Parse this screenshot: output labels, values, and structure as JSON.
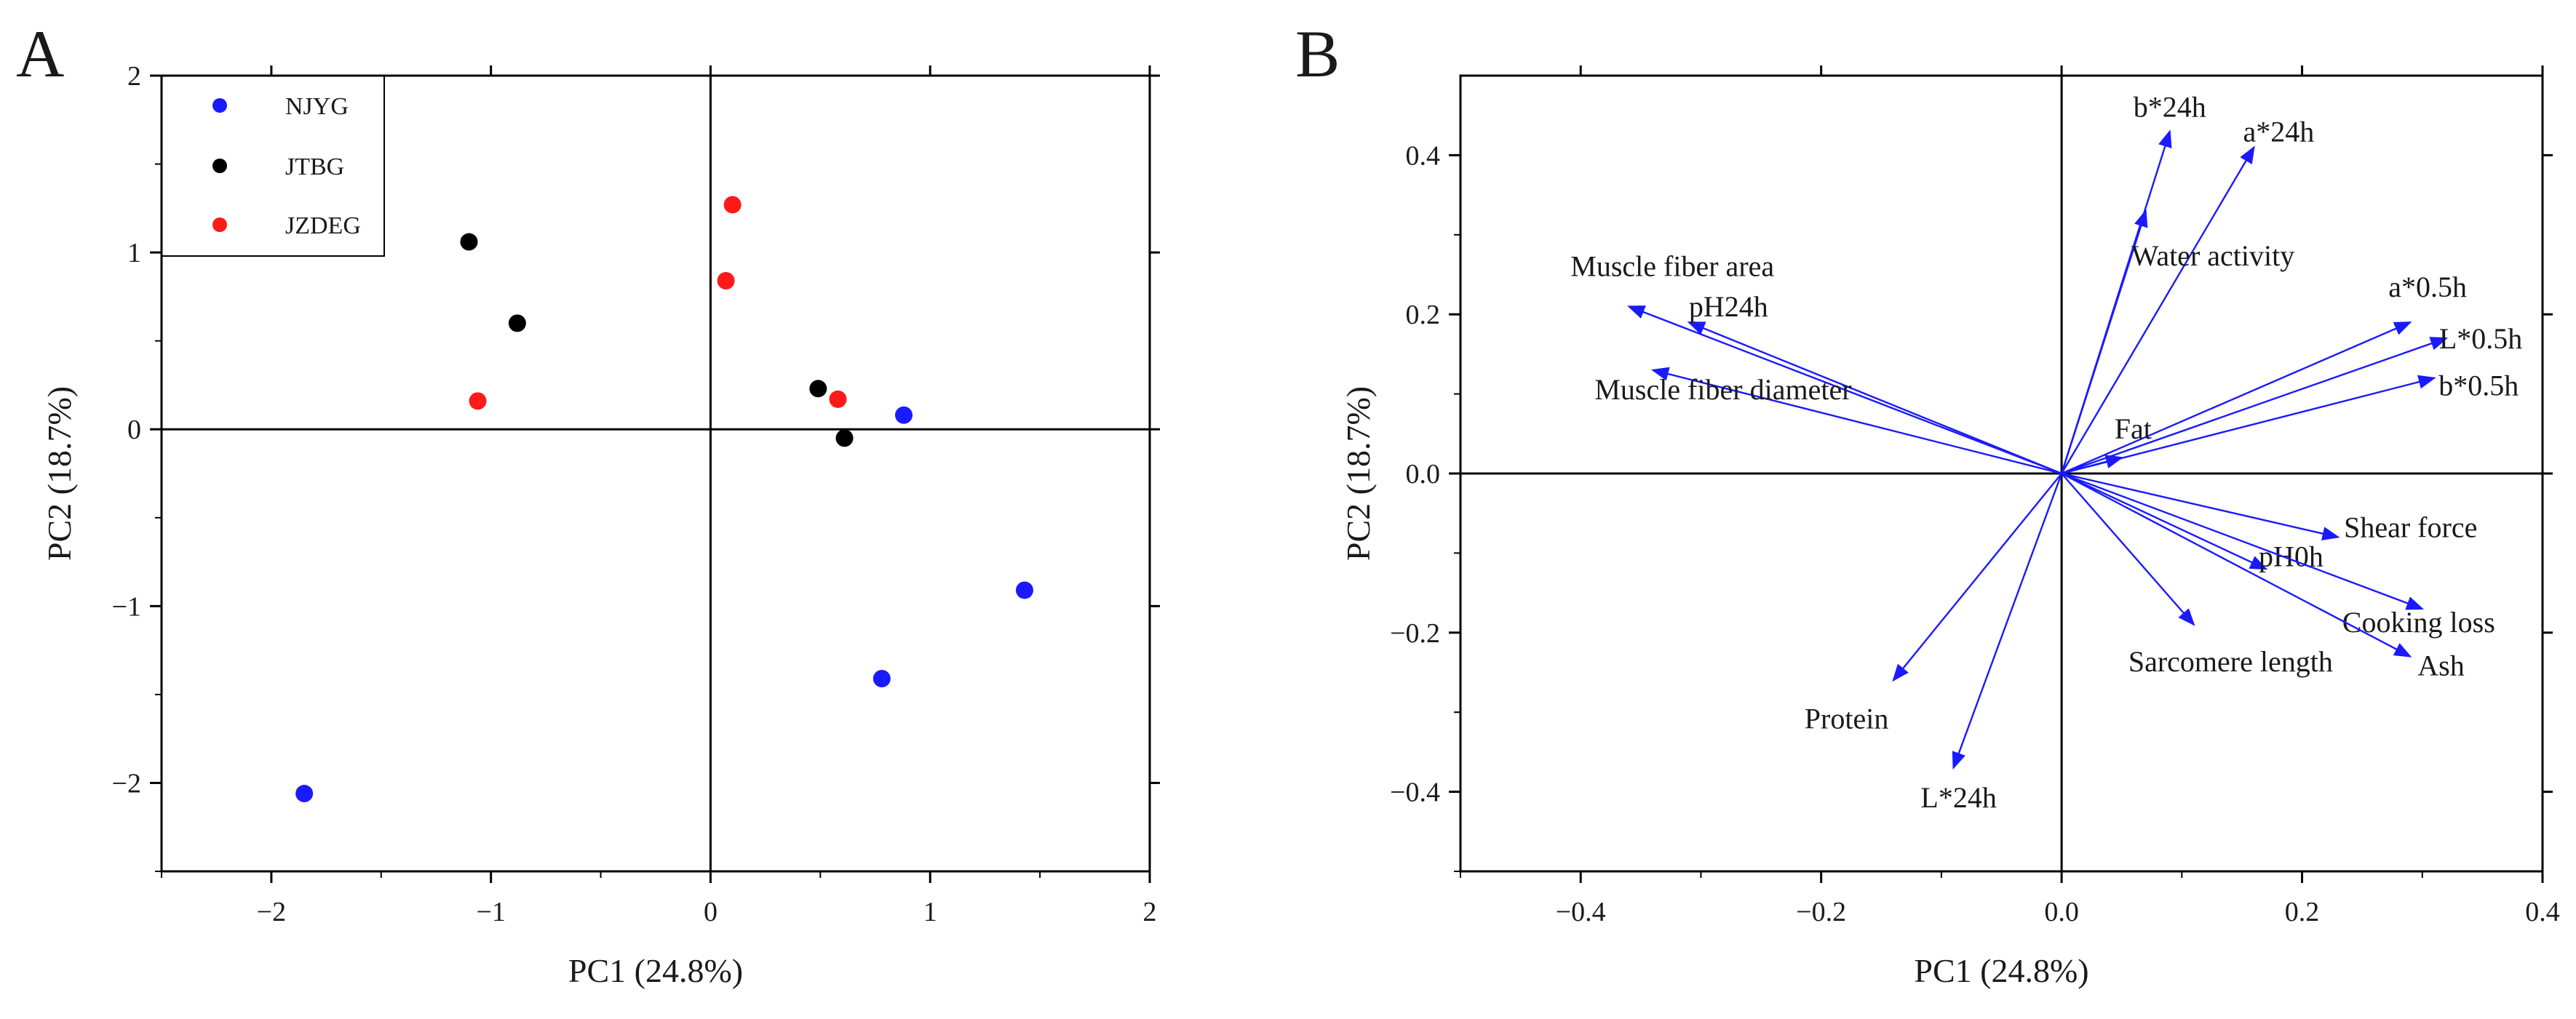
{
  "colors": {
    "NJYG": "#1a1aff",
    "JTBG": "#000000",
    "JZDEG": "#ff1a1a",
    "arrow": "#1a1aff",
    "axis": "#000000"
  },
  "chart_data": [
    {
      "panel": "A",
      "type": "scatter",
      "title": "",
      "xlabel": "PC1 (24.8%)",
      "ylabel": "PC2 (18.7%)",
      "xlim": [
        -2.5,
        2
      ],
      "ylim": [
        -2.5,
        2
      ],
      "xticks": [
        -2,
        -1,
        0,
        1,
        2
      ],
      "yticks": [
        -2,
        -1,
        0,
        1,
        2
      ],
      "xtick_labels": [
        "−2",
        "−1",
        "0",
        "1",
        "2"
      ],
      "ytick_labels": [
        "−2",
        "−1",
        "0",
        "1",
        "2"
      ],
      "legend_position": "top-left",
      "grid": false,
      "series": [
        {
          "name": "NJYG",
          "points": [
            [
              0.88,
              0.08
            ],
            [
              1.43,
              -0.91
            ],
            [
              0.78,
              -1.41
            ],
            [
              -1.85,
              -2.06
            ]
          ]
        },
        {
          "name": "JTBG",
          "points": [
            [
              -1.1,
              1.06
            ],
            [
              -0.88,
              0.6
            ],
            [
              0.49,
              0.23
            ],
            [
              0.61,
              -0.05
            ]
          ]
        },
        {
          "name": "JZDEG",
          "points": [
            [
              0.1,
              1.27
            ],
            [
              0.07,
              0.84
            ],
            [
              0.58,
              0.17
            ],
            [
              -1.06,
              0.16
            ]
          ]
        }
      ]
    },
    {
      "panel": "B",
      "type": "loading-vectors",
      "title": "",
      "xlabel": "PC1 (24.8%)",
      "ylabel": "PC2 (18.7%)",
      "xlim": [
        -0.5,
        0.4
      ],
      "ylim": [
        -0.5,
        0.5
      ],
      "xticks": [
        -0.4,
        -0.2,
        0.0,
        0.2,
        0.4
      ],
      "yticks": [
        -0.4,
        -0.2,
        0.0,
        0.2,
        0.4
      ],
      "xtick_labels": [
        "−0.4",
        "−0.2",
        "0.0",
        "0.2",
        "0.4"
      ],
      "ytick_labels": [
        "−0.4",
        "−0.2",
        "0.0",
        "0.2",
        "0.4"
      ],
      "grid": false,
      "vectors": [
        {
          "name": "b*24h",
          "x": 0.09,
          "y": 0.43
        },
        {
          "name": "a*24h",
          "x": 0.16,
          "y": 0.41
        },
        {
          "name": "Water activity",
          "x": 0.07,
          "y": 0.33
        },
        {
          "name": "Muscle fiber area",
          "x": -0.36,
          "y": 0.21
        },
        {
          "name": "pH24h",
          "x": -0.31,
          "y": 0.19
        },
        {
          "name": "Muscle fiber diameter",
          "x": -0.34,
          "y": 0.13
        },
        {
          "name": "a*0.5h",
          "x": 0.29,
          "y": 0.19
        },
        {
          "name": "L*0.5h",
          "x": 0.32,
          "y": 0.17
        },
        {
          "name": "b*0.5h",
          "x": 0.31,
          "y": 0.12
        },
        {
          "name": "Fat",
          "x": 0.05,
          "y": 0.02
        },
        {
          "name": "Shear force",
          "x": 0.23,
          "y": -0.08
        },
        {
          "name": "pH0h",
          "x": 0.17,
          "y": -0.12
        },
        {
          "name": "Cooking loss",
          "x": 0.3,
          "y": -0.17
        },
        {
          "name": "Ash",
          "x": 0.29,
          "y": -0.23
        },
        {
          "name": "Sarcomere length",
          "x": 0.11,
          "y": -0.19
        },
        {
          "name": "Protein",
          "x": -0.14,
          "y": -0.26
        },
        {
          "name": "L*24h",
          "x": -0.09,
          "y": -0.37
        }
      ]
    }
  ]
}
